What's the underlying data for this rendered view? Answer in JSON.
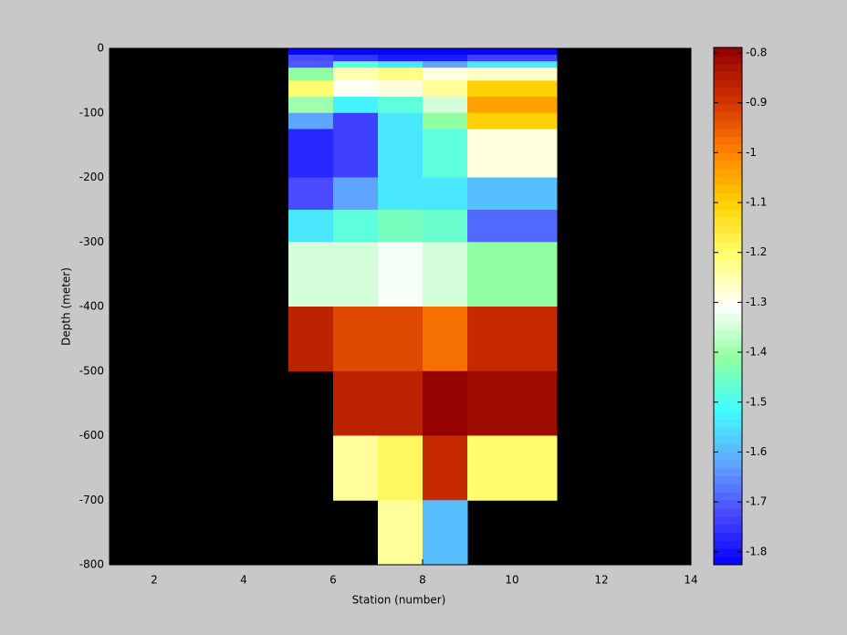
{
  "chart_data": {
    "type": "heatmap",
    "xlabel": "Station (number)",
    "ylabel": "Depth (meter)",
    "x_edges": [
      5,
      6,
      7,
      8,
      9,
      11
    ],
    "y_edges": [
      0,
      -10,
      -20,
      -30,
      -50,
      -75,
      -100,
      -125,
      -150,
      -200,
      -250,
      -300,
      -400,
      -500,
      -600,
      -700,
      -800
    ],
    "values": [
      [
        -1.82,
        -1.82,
        -1.82,
        -1.82,
        -1.82
      ],
      [
        -1.72,
        -1.76,
        -1.78,
        -1.78,
        -1.74
      ],
      [
        -1.7,
        -1.47,
        -1.55,
        -1.62,
        -1.55
      ],
      [
        -1.42,
        -1.25,
        -1.22,
        -1.28,
        -1.27
      ],
      [
        -1.2,
        -1.3,
        -1.29,
        -1.24,
        -1.1
      ],
      [
        -1.4,
        -1.53,
        -1.48,
        -1.34,
        -1.04
      ],
      [
        -1.62,
        -1.74,
        -1.55,
        -1.42,
        -1.1
      ],
      [
        -1.77,
        -1.74,
        -1.55,
        -1.47,
        -1.28
      ],
      [
        -1.77,
        -1.74,
        -1.55,
        -1.47,
        -1.28
      ],
      [
        -1.72,
        -1.62,
        -1.54,
        -1.54,
        -1.59
      ],
      [
        -1.54,
        -1.47,
        -1.44,
        -1.46,
        -1.69
      ],
      [
        -1.35,
        -1.35,
        -1.31,
        -1.34,
        -1.42
      ],
      [
        -0.87,
        -0.93,
        -0.93,
        -0.98,
        -0.88
      ],
      [
        null,
        -0.87,
        -0.87,
        -0.79,
        -0.81
      ],
      [
        null,
        -1.24,
        -1.19,
        -0.88,
        -1.2
      ],
      [
        null,
        null,
        -1.24,
        -1.59,
        null
      ]
    ],
    "xlim": [
      1,
      14
    ],
    "ylim": [
      -800,
      0
    ],
    "xticks": [
      2,
      4,
      6,
      8,
      10,
      12,
      14
    ],
    "yticks": [
      0,
      -100,
      -200,
      -300,
      -400,
      -500,
      -600,
      -700,
      -800
    ],
    "clim": [
      -1.826,
      -0.789
    ],
    "cticks": [
      -0.8,
      -0.9,
      -1,
      -1.1,
      -1.2,
      -1.3,
      -1.4,
      -1.5,
      -1.6,
      -1.7,
      -1.8
    ],
    "colormap": [
      "#0000ff",
      "#4a4aff",
      "#60a8ff",
      "#40ffff",
      "#90ffa0",
      "#ffffff",
      "#ffff70",
      "#ffd000",
      "#ff8000",
      "#d03000",
      "#900000"
    ],
    "colormap_levels": 64,
    "axes_color": "#000000",
    "figure_color": "#c8c8c8"
  }
}
